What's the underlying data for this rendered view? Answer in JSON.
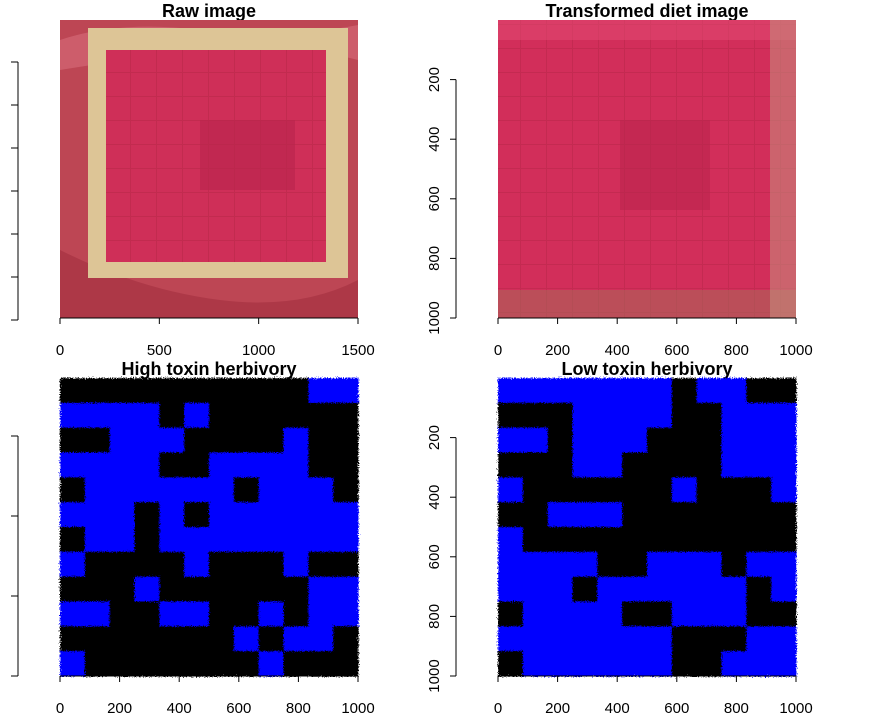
{
  "chart_data": [
    {
      "type": "image",
      "title": "Raw image",
      "xlim": [
        0,
        1500
      ],
      "x_ticks": [
        0,
        500,
        1000,
        1500
      ],
      "image_extent_x": [
        0,
        1400
      ],
      "y_axis_tick_labels_visible": false,
      "colors": {
        "background": "#c9525f",
        "frame": "#ddc596",
        "diet": "#cf2f58"
      }
    },
    {
      "type": "image",
      "title": "Transformed diet image",
      "xlim": [
        0,
        1000
      ],
      "ylim": [
        1000,
        0
      ],
      "x_ticks": [
        0,
        200,
        400,
        600,
        800,
        1000
      ],
      "y_ticks": [
        200,
        400,
        600,
        800,
        1000
      ],
      "colors": {
        "diet": "#d22e5a",
        "dark_patch": "#b8254d"
      }
    },
    {
      "type": "heatmap",
      "title": "High toxin herbivory",
      "xlim": [
        0,
        1000
      ],
      "x_ticks": [
        0,
        200,
        400,
        600,
        800,
        1000
      ],
      "y_axis_tick_labels_visible": false,
      "rows": 12,
      "cols": 12,
      "grid": [
        "000000000011",
        "111101000000",
        "001110000100",
        "111100111100",
        "011111101110",
        "111010111111",
        "011011111111",
        "100001000100",
        "000100000011",
        "110011001011",
        "000000010110",
        "100000001000"
      ],
      "colors": {
        "1": "#0000ff",
        "0": "#000000"
      }
    },
    {
      "type": "heatmap",
      "title": "Low toxin herbivory",
      "xlim": [
        0,
        1000
      ],
      "ylim": [
        1000,
        0
      ],
      "x_ticks": [
        0,
        200,
        400,
        600,
        800,
        1000
      ],
      "y_ticks": [
        200,
        400,
        600,
        800,
        1000
      ],
      "rows": 12,
      "cols": 12,
      "grid": [
        "111111101100",
        "000111100111",
        "110111000111",
        "000110000111",
        "100000010001",
        "001110000000",
        "100000000000",
        "111100111011",
        "111011111101",
        "011110011100",
        "111111100011",
        "011111100111"
      ],
      "colors": {
        "1": "#0000ff",
        "0": "#000000"
      }
    }
  ]
}
